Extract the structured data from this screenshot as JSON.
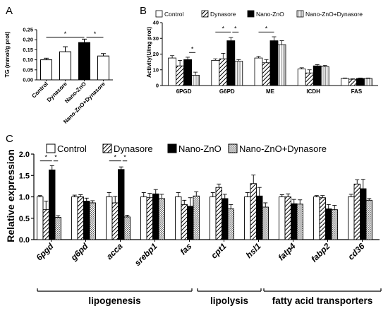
{
  "colors": {
    "axis": "#000000",
    "hatch": "#000000",
    "dotted": "#000000"
  },
  "panel_a": {
    "letter": "A",
    "chart_data": {
      "type": "bar",
      "ylabel": "TG (mmol/g prot)",
      "ylim": [
        0,
        0.25
      ],
      "yticks": [
        "0.00",
        "0.05",
        "0.10",
        "0.15",
        "0.20",
        "0.25"
      ],
      "categories": [
        "Control",
        "Dynasore",
        "Nano-ZnO",
        "Nano-ZnO+Dynasore"
      ],
      "values": [
        0.1,
        0.14,
        0.186,
        0.119
      ],
      "errors": [
        0.008,
        0.025,
        0.017,
        0.012
      ],
      "fills": [
        "white",
        "white",
        "black",
        "white"
      ],
      "significance": [
        {
          "from": 0,
          "to": 2,
          "label": "*",
          "y": 0.212
        },
        {
          "from": 2,
          "to": 3,
          "label": "*",
          "y": 0.212
        }
      ]
    }
  },
  "panel_b": {
    "letter": "B",
    "legend": [
      "Control",
      "Dynasore",
      "Nano-ZnO",
      "Nano-ZnO+Dynasore"
    ],
    "chart_data": {
      "type": "bar",
      "ylabel": "Activity(U/mg prot)",
      "ylim": [
        0,
        40
      ],
      "yticks": [
        "0",
        "10",
        "20",
        "30",
        "40"
      ],
      "categories": [
        "6PGD",
        "G6PD",
        "ME",
        "ICDH",
        "FAS"
      ],
      "series": [
        {
          "name": "Control",
          "values": [
            17.5,
            16.0,
            17.5,
            10.5,
            4.5
          ],
          "errors": [
            1.5,
            1.0,
            1.0,
            0.8,
            0.3
          ]
        },
        {
          "name": "Dynasore",
          "values": [
            12.5,
            17.0,
            14.5,
            8.0,
            4.0
          ],
          "errors": [
            3.5,
            3.5,
            2.0,
            2.0,
            0.3
          ]
        },
        {
          "name": "Nano-ZnO",
          "values": [
            16.5,
            28.5,
            28.5,
            12.5,
            4.5
          ],
          "errors": [
            1.5,
            2.0,
            2.5,
            0.8,
            0.3
          ]
        },
        {
          "name": "Nano-ZnO+Dynasore",
          "values": [
            6.5,
            15.5,
            26.0,
            12.0,
            4.5
          ],
          "errors": [
            2.0,
            1.0,
            2.5,
            0.8,
            0.3
          ]
        }
      ],
      "significance": [
        {
          "group": 0,
          "from": 2,
          "to": 3,
          "label": "*",
          "y": 21.0
        },
        {
          "group": 1,
          "from": 0,
          "to": 2,
          "label": "*",
          "y": 34.0
        },
        {
          "group": 1,
          "from": 2,
          "to": 3,
          "label": "*",
          "y": 34.0
        },
        {
          "group": 2,
          "from": 0,
          "to": 2,
          "label": "*",
          "y": 34.0
        }
      ]
    }
  },
  "panel_c": {
    "letter": "C",
    "legend": [
      "Control",
      "Dynasore",
      "Nano-ZnO",
      "Nano-ZnO+Dynasore"
    ],
    "chart_data": {
      "type": "bar",
      "ylabel": "Relative expression",
      "ylim": [
        0,
        2.0
      ],
      "yticks": [
        "0.0",
        "0.5",
        "1.0",
        "1.5",
        "2.0"
      ],
      "categories": [
        "6pgd",
        "g6pd",
        "acca",
        "srebp1",
        "fas",
        "cpt1",
        "hsl1",
        "fatp4",
        "fabp2",
        "cd36"
      ],
      "series": [
        {
          "name": "Control",
          "values": [
            1.0,
            1.0,
            1.0,
            1.0,
            1.0,
            1.0,
            1.0,
            1.0,
            1.0,
            1.0
          ],
          "errors": [
            0.03,
            0.04,
            0.1,
            0.1,
            0.1,
            0.1,
            0.1,
            0.05,
            0.03,
            0.06
          ]
        },
        {
          "name": "Dynasore",
          "values": [
            0.7,
            1.0,
            0.86,
            0.98,
            0.82,
            1.22,
            1.31,
            1.0,
            0.98,
            1.3
          ],
          "errors": [
            0.2,
            0.05,
            0.15,
            0.1,
            0.1,
            0.08,
            0.2,
            0.07,
            0.05,
            0.1
          ]
        },
        {
          "name": "Nano-ZnO",
          "values": [
            1.63,
            0.9,
            1.64,
            1.07,
            0.78,
            0.96,
            1.02,
            0.84,
            0.72,
            1.19
          ],
          "errors": [
            0.1,
            0.07,
            0.06,
            0.1,
            0.2,
            0.1,
            0.2,
            0.1,
            0.1,
            0.22
          ]
        },
        {
          "name": "Nano-ZnO+Dynasore",
          "values": [
            0.52,
            0.86,
            0.53,
            0.96,
            1.02,
            0.72,
            0.76,
            0.83,
            0.7,
            0.92
          ],
          "errors": [
            0.04,
            0.05,
            0.04,
            0.1,
            0.1,
            0.1,
            0.1,
            0.1,
            0.1,
            0.04
          ]
        }
      ],
      "significance": [
        {
          "group": 0,
          "from": 0,
          "to": 2,
          "label": "*",
          "y": 1.84
        },
        {
          "group": 0,
          "from": 2,
          "to": 3,
          "label": "*",
          "y": 1.84
        },
        {
          "group": 2,
          "from": 0,
          "to": 2,
          "label": "*",
          "y": 1.84
        },
        {
          "group": 2,
          "from": 2,
          "to": 3,
          "label": "*",
          "y": 1.84
        }
      ],
      "groups": [
        {
          "label": "lipogenesis",
          "from": 0,
          "to": 4
        },
        {
          "label": "lipolysis",
          "from": 5,
          "to": 6
        },
        {
          "label": "fatty acid transporters",
          "from": 7,
          "to": 9
        }
      ]
    }
  }
}
